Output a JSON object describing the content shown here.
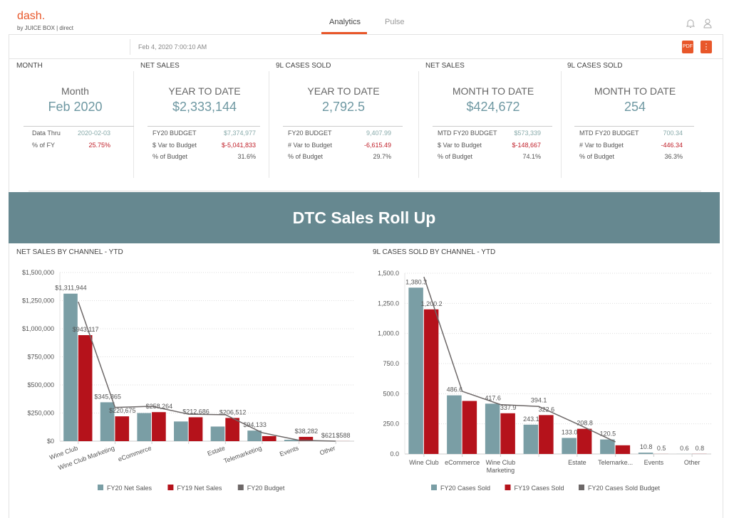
{
  "header": {
    "logo": "dash.",
    "logo_sub": "by JUICE BOX | direct",
    "tabs": [
      {
        "label": "Analytics",
        "active": true
      },
      {
        "label": "Pulse",
        "active": false
      }
    ],
    "icons": [
      "bell-icon",
      "user-icon"
    ]
  },
  "toolbar": {
    "timestamp": "Feb 4, 2020 7:00:10 AM",
    "pdf_label": "PDF",
    "more_label": "⋮",
    "accent": "#e8572a"
  },
  "kpis": [
    {
      "category": "MONTH",
      "heading": "Month",
      "value": "Feb 2020",
      "rows": [
        {
          "label": "Data Thru",
          "value": "2020-02-03",
          "tone": "grey"
        },
        {
          "label": "% of FY",
          "value": "25.75%",
          "tone": "red"
        }
      ]
    },
    {
      "category": "NET SALES",
      "heading": "YEAR TO DATE",
      "value": "$2,333,144",
      "rows": [
        {
          "label": "FY20 BUDGET",
          "value": "$7,374,977",
          "tone": "grey"
        },
        {
          "label": "$ Var to Budget",
          "value": "$-5,041,833",
          "tone": "red"
        },
        {
          "label": "% of Budget",
          "value": "31.6%",
          "tone": ""
        }
      ]
    },
    {
      "category": "9L CASES SOLD",
      "heading": "YEAR TO DATE",
      "value": "2,792.5",
      "rows": [
        {
          "label": "FY20 BUDGET",
          "value": "9,407.99",
          "tone": "grey"
        },
        {
          "label": "# Var to Budget",
          "value": "-6,615.49",
          "tone": "red"
        },
        {
          "label": "% of Budget",
          "value": "29.7%",
          "tone": ""
        }
      ]
    },
    {
      "category": "NET SALES",
      "heading": "MONTH TO DATE",
      "value": "$424,672",
      "rows": [
        {
          "label": "MTD FY20 BUDGET",
          "value": "$573,339",
          "tone": "grey"
        },
        {
          "label": "$ Var to Budget",
          "value": "$-148,667",
          "tone": "red"
        },
        {
          "label": "% of Budget",
          "value": "74.1%",
          "tone": ""
        }
      ]
    },
    {
      "category": "9L CASES SOLD",
      "heading": "MONTH TO DATE",
      "value": "254",
      "rows": [
        {
          "label": "MTD FY20 BUDGET",
          "value": "700.34",
          "tone": "grey"
        },
        {
          "label": "# Var to Budget",
          "value": "-446.34",
          "tone": "red"
        },
        {
          "label": "% of Budget",
          "value": "36.3%",
          "tone": ""
        }
      ]
    }
  ],
  "banner": {
    "title": "DTC Sales Roll Up"
  },
  "chart_data": [
    {
      "type": "bar",
      "title": "NET SALES BY CHANNEL - YTD",
      "categories": [
        "Wine Club",
        "Wine Club Marketing",
        "eCommerce",
        "",
        "Estate",
        "Telemarketing",
        "Events",
        "Other"
      ],
      "ylim": [
        0,
        1500000
      ],
      "yticks": [
        "$0",
        "$250,000",
        "$500,000",
        "$750,000",
        "$1,000,000",
        "$1,250,000",
        "$1,500,000"
      ],
      "rotated_labels": true,
      "series": [
        {
          "name": "FY20 Net Sales",
          "color": "#7a9ea5",
          "values": [
            1311944,
            345865,
            250000,
            175000,
            130000,
            94133,
            12000,
            621
          ],
          "labels": [
            "$1,311,944",
            "$345,865",
            "",
            "",
            "",
            "$94,133",
            "",
            "$621"
          ]
        },
        {
          "name": "FY19 Net Sales",
          "color": "#b5121b",
          "values": [
            943117,
            220675,
            258264,
            212686,
            206512,
            45000,
            38282,
            588
          ],
          "labels": [
            "$943,117",
            "$220,675",
            "$258,264",
            "$212,686",
            "$206,512",
            "",
            "$38,282",
            "$588"
          ]
        },
        {
          "name": "FY20 Budget",
          "color": "#6d6868",
          "type": "line",
          "values": [
            1240000,
            300000,
            310000,
            240000,
            235000,
            75000,
            8000,
            0
          ]
        }
      ]
    },
    {
      "type": "bar",
      "title": "9L CASES SOLD BY CHANNEL - YTD",
      "categories": [
        "Wine Club",
        "eCommerce",
        "Wine Club\nMarketing",
        "",
        "Estate",
        "Telemarke...",
        "Events",
        "Other"
      ],
      "ylim": [
        0,
        1500
      ],
      "yticks": [
        "0.0",
        "250.0",
        "500.0",
        "750.0",
        "1,000.0",
        "1,250.0",
        "1,500.0"
      ],
      "rotated_labels": false,
      "series": [
        {
          "name": "FY20 Cases Sold",
          "color": "#7a9ea5",
          "values": [
            1380.3,
            486.6,
            417.6,
            243.1,
            133.0,
            120.5,
            10.8,
            0.6
          ],
          "labels": [
            "1,380.3",
            "486.6",
            "417.6",
            "243.1",
            "133.0",
            "120.5",
            "10.8",
            "0.6"
          ]
        },
        {
          "name": "FY19 Cases Sold",
          "color": "#b5121b",
          "values": [
            1200.2,
            440,
            337.9,
            322.6,
            208.8,
            72,
            0.5,
            0.8
          ],
          "labels": [
            "1,200.2",
            "",
            "337.9",
            "322.6",
            "208.8",
            "",
            "0.5",
            "0.8"
          ]
        },
        {
          "name": "FY20 Cases Sold Budget",
          "color": "#6d6868",
          "type": "line",
          "values": [
            1470,
            520,
            410,
            394.1,
            250,
            100,
            null,
            null
          ],
          "labels": [
            "",
            "",
            "",
            "394.1",
            "",
            "",
            "",
            ""
          ]
        }
      ]
    }
  ]
}
